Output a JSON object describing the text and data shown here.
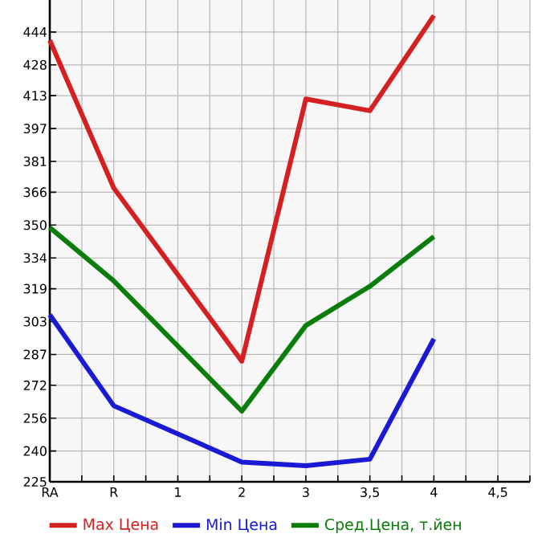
{
  "chart_data": {
    "type": "line",
    "categories": [
      "RA",
      "R",
      "1",
      "2",
      "3",
      "3,5",
      "4",
      "4,5"
    ],
    "series": [
      {
        "name": "Max Цена",
        "color": "#d42020",
        "values": [
          440,
          368,
          null,
          283.7,
          411.4,
          405.7,
          452,
          null
        ]
      },
      {
        "name": "Min Цена",
        "color": "#1a1ad4",
        "values": [
          306.3,
          262,
          null,
          234.6,
          232.8,
          236,
          294.6,
          null
        ]
      },
      {
        "name": "Сред.Цена, т.йен",
        "color": "#0a7d0a",
        "values": [
          348.8,
          322.8,
          null,
          259.4,
          301.1,
          320.2,
          344.4,
          null
        ]
      }
    ],
    "ylim": [
      225,
      459.6
    ],
    "yticks": [
      225,
      240,
      256,
      272,
      287,
      303,
      319,
      334,
      350,
      366,
      381,
      397,
      413,
      428,
      444
    ],
    "grid": true,
    "legend": "bottom",
    "marker": "none",
    "line_style": "solid"
  }
}
